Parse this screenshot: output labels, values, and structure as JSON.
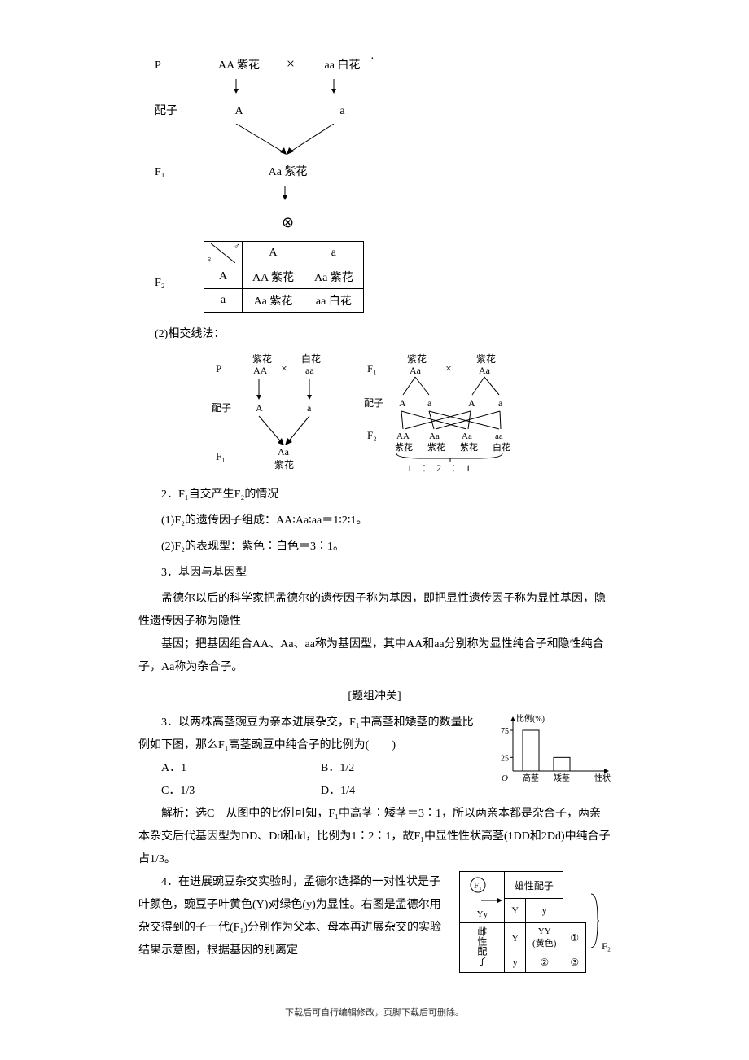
{
  "header_dot": "．",
  "cross1": {
    "P_label": "P",
    "P_left": "AA 紫花",
    "P_right": "aa 白花",
    "cross_symbol": "×",
    "gamete_label": "配子",
    "gamete_left": "A",
    "gamete_right": "a",
    "F1_label": "F₁",
    "F1_text": "Aa 紫花",
    "self_symbol": "⊗",
    "F2_label": "F₂",
    "punnett": {
      "corner_male": "♂",
      "corner_female": "♀",
      "cols": [
        "A",
        "a"
      ],
      "rows": [
        "A",
        "a"
      ],
      "cells": [
        [
          "AA 紫花",
          "Aa 紫花"
        ],
        [
          "Aa 紫花",
          "aa 白花"
        ]
      ]
    }
  },
  "section_2_label": "(2)相交线法：",
  "cross2_left": {
    "P_label": "P",
    "top_left_ph": "紫花",
    "top_right_ph": "白花",
    "top_left_g": "AA",
    "top_right_g": "aa",
    "cross": "×",
    "gamete_label": "配子",
    "g_left": "A",
    "g_right": "a",
    "F1_label": "F₁",
    "F1_g": "Aa",
    "F1_ph": "紫花"
  },
  "cross2_right": {
    "F1_label": "F₁",
    "top_left_ph": "紫花",
    "top_right_ph": "紫花",
    "top_left_g": "Aa",
    "top_right_g": "Aa",
    "cross": "×",
    "gamete_label": "配子",
    "g": [
      "A",
      "a",
      "A",
      "a"
    ],
    "F2_label": "F₂",
    "F2_g": [
      "AA",
      "Aa",
      "Aa",
      "aa"
    ],
    "F2_ph": [
      "紫花",
      "紫花",
      "紫花",
      "白花"
    ],
    "ratio": "1　：　2　：　1"
  },
  "text_blocks": {
    "t1": "2．F₁自交产生F₂的情况",
    "t2": "(1)F₂的遗传因子组成：AA∶Aa∶aa＝1∶2∶1。",
    "t3": "(2)F₂的表现型：紫色∶白色＝3∶1。",
    "t4": "3．基因与基因型",
    "t5": "孟德尔以后的科学家把孟德尔的遗传因子称为基因，即把显性遗传因子称为显性基因，隐性遗传因子称为隐性",
    "t6": "基因；把基因组合AA、Aa、aa称为基因型，其中AA和aa分别称为显性纯合子和隐性纯合子，Aa称为杂合子。",
    "t7": "[题组冲关]",
    "q3": "3．以两株高茎豌豆为亲本进展杂交，F₁中高茎和矮茎的数量比例如下图，那么F₁高茎豌豆中纯合子的比例为(　　)",
    "choices": {
      "A": "A．1",
      "B": "B．1/2",
      "C": "C．1/3",
      "D": "D．1/4"
    },
    "q3_ans": "解析：选C　从图中的比例可知，F₁中高茎∶矮茎＝3∶1，所以两亲本都是杂合子，两亲本杂交后代基因型为DD、Dd和dd，比例为1∶2∶1，故F₁中显性性状高茎(1DD和2Dd)中纯合子占1/3。",
    "q4": "4．在进展豌豆杂交实验时，孟德尔选择的一对性状是子叶颜色，豌豆子叶黄色(Y)对绿色(y)为显性。右图是孟德尔用杂交得到的子一代(F₁)分别作为父本、母本再进展杂交的实验结果示意图，根据基因的别离定"
  },
  "bar_chart": {
    "ylabel": "比例(%)",
    "yticks": [
      25,
      75
    ],
    "ylim": [
      0,
      90
    ],
    "bars": [
      {
        "label": "高茎",
        "value": 75
      },
      {
        "label": "矮茎",
        "value": 25
      }
    ],
    "xlabel_extra": "性状",
    "bar_color": "#ffffff",
    "bar_border": "#000000",
    "axis_color": "#000000",
    "bg": "#ffffff"
  },
  "q4_punnett": {
    "F1_label": "F₁",
    "F1_geno": "Yy",
    "male_header": "雄性配子",
    "female_header": "雌性配子",
    "cols": [
      "Y",
      "y"
    ],
    "rows": [
      "Y",
      "y"
    ],
    "cells": [
      [
        "YY\n(黄色)",
        "①"
      ],
      [
        "②",
        "③"
      ]
    ],
    "F2_label": "F₂"
  },
  "footer": "下载后可自行编辑修改，页脚下载后可删除。"
}
